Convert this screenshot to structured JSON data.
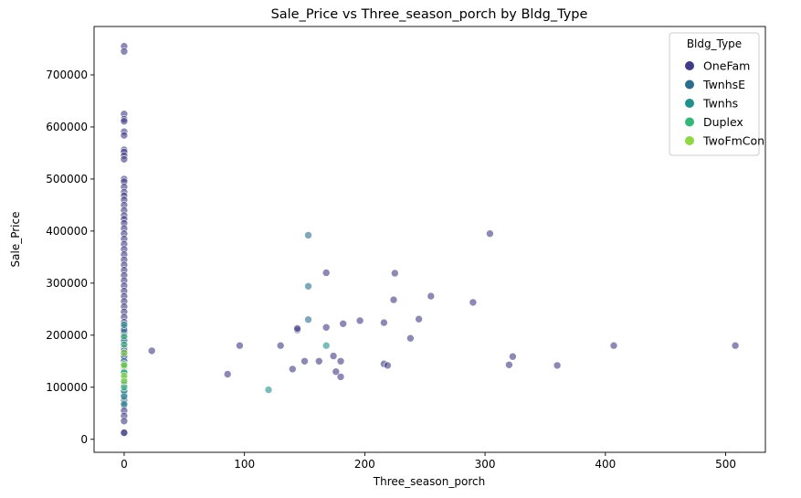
{
  "chart_data": {
    "type": "scatter",
    "title": "Sale_Price vs Three_season_porch by Bldg_Type",
    "xlabel": "Three_season_porch",
    "ylabel": "Sale_Price",
    "xlim": [
      -25,
      533
    ],
    "ylim": [
      -25000,
      793000
    ],
    "xticks": [
      0,
      100,
      200,
      300,
      400,
      500
    ],
    "yticks": [
      0,
      100000,
      200000,
      300000,
      400000,
      500000,
      600000,
      700000
    ],
    "grid": false,
    "legend": {
      "title": "Bldg_Type",
      "position": "top-right"
    },
    "series": [
      {
        "name": "OneFam",
        "color": "#3f3b84",
        "points": [
          [
            0,
            755000
          ],
          [
            0,
            745000
          ],
          [
            0,
            625000
          ],
          [
            0,
            615000
          ],
          [
            0,
            611000
          ],
          [
            0,
            591000
          ],
          [
            0,
            584000
          ],
          [
            0,
            556000
          ],
          [
            0,
            552000
          ],
          [
            0,
            545000
          ],
          [
            0,
            538000
          ],
          [
            0,
            500000
          ],
          [
            0,
            495000
          ],
          [
            0,
            485000
          ],
          [
            0,
            475000
          ],
          [
            0,
            468000
          ],
          [
            0,
            460000
          ],
          [
            0,
            450000
          ],
          [
            0,
            440000
          ],
          [
            0,
            430000
          ],
          [
            0,
            423000
          ],
          [
            0,
            415000
          ],
          [
            0,
            405000
          ],
          [
            0,
            395000
          ],
          [
            0,
            385000
          ],
          [
            0,
            375000
          ],
          [
            0,
            365000
          ],
          [
            0,
            355000
          ],
          [
            0,
            345000
          ],
          [
            0,
            335000
          ],
          [
            0,
            325000
          ],
          [
            0,
            315000
          ],
          [
            0,
            305000
          ],
          [
            0,
            295000
          ],
          [
            0,
            285000
          ],
          [
            0,
            275000
          ],
          [
            0,
            265000
          ],
          [
            0,
            255000
          ],
          [
            0,
            245000
          ],
          [
            0,
            235000
          ],
          [
            0,
            225000
          ],
          [
            0,
            215000
          ],
          [
            0,
            205000
          ],
          [
            0,
            195000
          ],
          [
            0,
            185000
          ],
          [
            0,
            175000
          ],
          [
            0,
            165000
          ],
          [
            0,
            155000
          ],
          [
            0,
            145000
          ],
          [
            0,
            135000
          ],
          [
            0,
            125000
          ],
          [
            0,
            115000
          ],
          [
            0,
            105000
          ],
          [
            0,
            95000
          ],
          [
            0,
            85000
          ],
          [
            0,
            75000
          ],
          [
            0,
            65000
          ],
          [
            0,
            55000
          ],
          [
            0,
            45000
          ],
          [
            0,
            35000
          ],
          [
            0,
            13000
          ],
          [
            0,
            12500
          ],
          [
            23,
            170000
          ],
          [
            86,
            125000
          ],
          [
            96,
            180000
          ],
          [
            130,
            180000
          ],
          [
            140,
            135000
          ],
          [
            144,
            210000
          ],
          [
            144,
            213000
          ],
          [
            150,
            150000
          ],
          [
            162,
            150000
          ],
          [
            168,
            320000
          ],
          [
            168,
            215000
          ],
          [
            174,
            160000
          ],
          [
            176,
            130000
          ],
          [
            180,
            150000
          ],
          [
            180,
            120000
          ],
          [
            182,
            222000
          ],
          [
            196,
            228000
          ],
          [
            216,
            224000
          ],
          [
            216,
            145000
          ],
          [
            219,
            142000
          ],
          [
            224,
            268000
          ],
          [
            225,
            319000
          ],
          [
            238,
            194000
          ],
          [
            245,
            231000
          ],
          [
            255,
            275000
          ],
          [
            290,
            263000
          ],
          [
            304,
            395000
          ],
          [
            320,
            143000
          ],
          [
            323,
            159000
          ],
          [
            360,
            142000
          ],
          [
            407,
            180000
          ],
          [
            508,
            180000
          ]
        ]
      },
      {
        "name": "TwnhsE",
        "color": "#2c6d8e",
        "points": [
          [
            0,
            210000
          ],
          [
            0,
            190000
          ],
          [
            0,
            170000
          ],
          [
            0,
            160000
          ],
          [
            0,
            150000
          ],
          [
            0,
            140000
          ],
          [
            153,
            392000
          ],
          [
            153,
            294000
          ],
          [
            153,
            230000
          ]
        ]
      },
      {
        "name": "Twnhs",
        "color": "#21908d",
        "points": [
          [
            0,
            220000
          ],
          [
            0,
            130000
          ],
          [
            0,
            110000
          ],
          [
            0,
            92000
          ],
          [
            0,
            82000
          ],
          [
            0,
            68000
          ],
          [
            120,
            95000
          ],
          [
            168,
            180000
          ]
        ]
      },
      {
        "name": "Duplex",
        "color": "#35b779",
        "points": [
          [
            0,
            198000
          ],
          [
            0,
            182000
          ],
          [
            0,
            144000
          ],
          [
            0,
            128000
          ],
          [
            0,
            118000
          ],
          [
            0,
            100000
          ]
        ]
      },
      {
        "name": "TwoFmCon",
        "color": "#8fd744",
        "points": [
          [
            0,
            166000
          ],
          [
            0,
            142000
          ],
          [
            0,
            122000
          ],
          [
            0,
            112000
          ]
        ]
      }
    ]
  }
}
